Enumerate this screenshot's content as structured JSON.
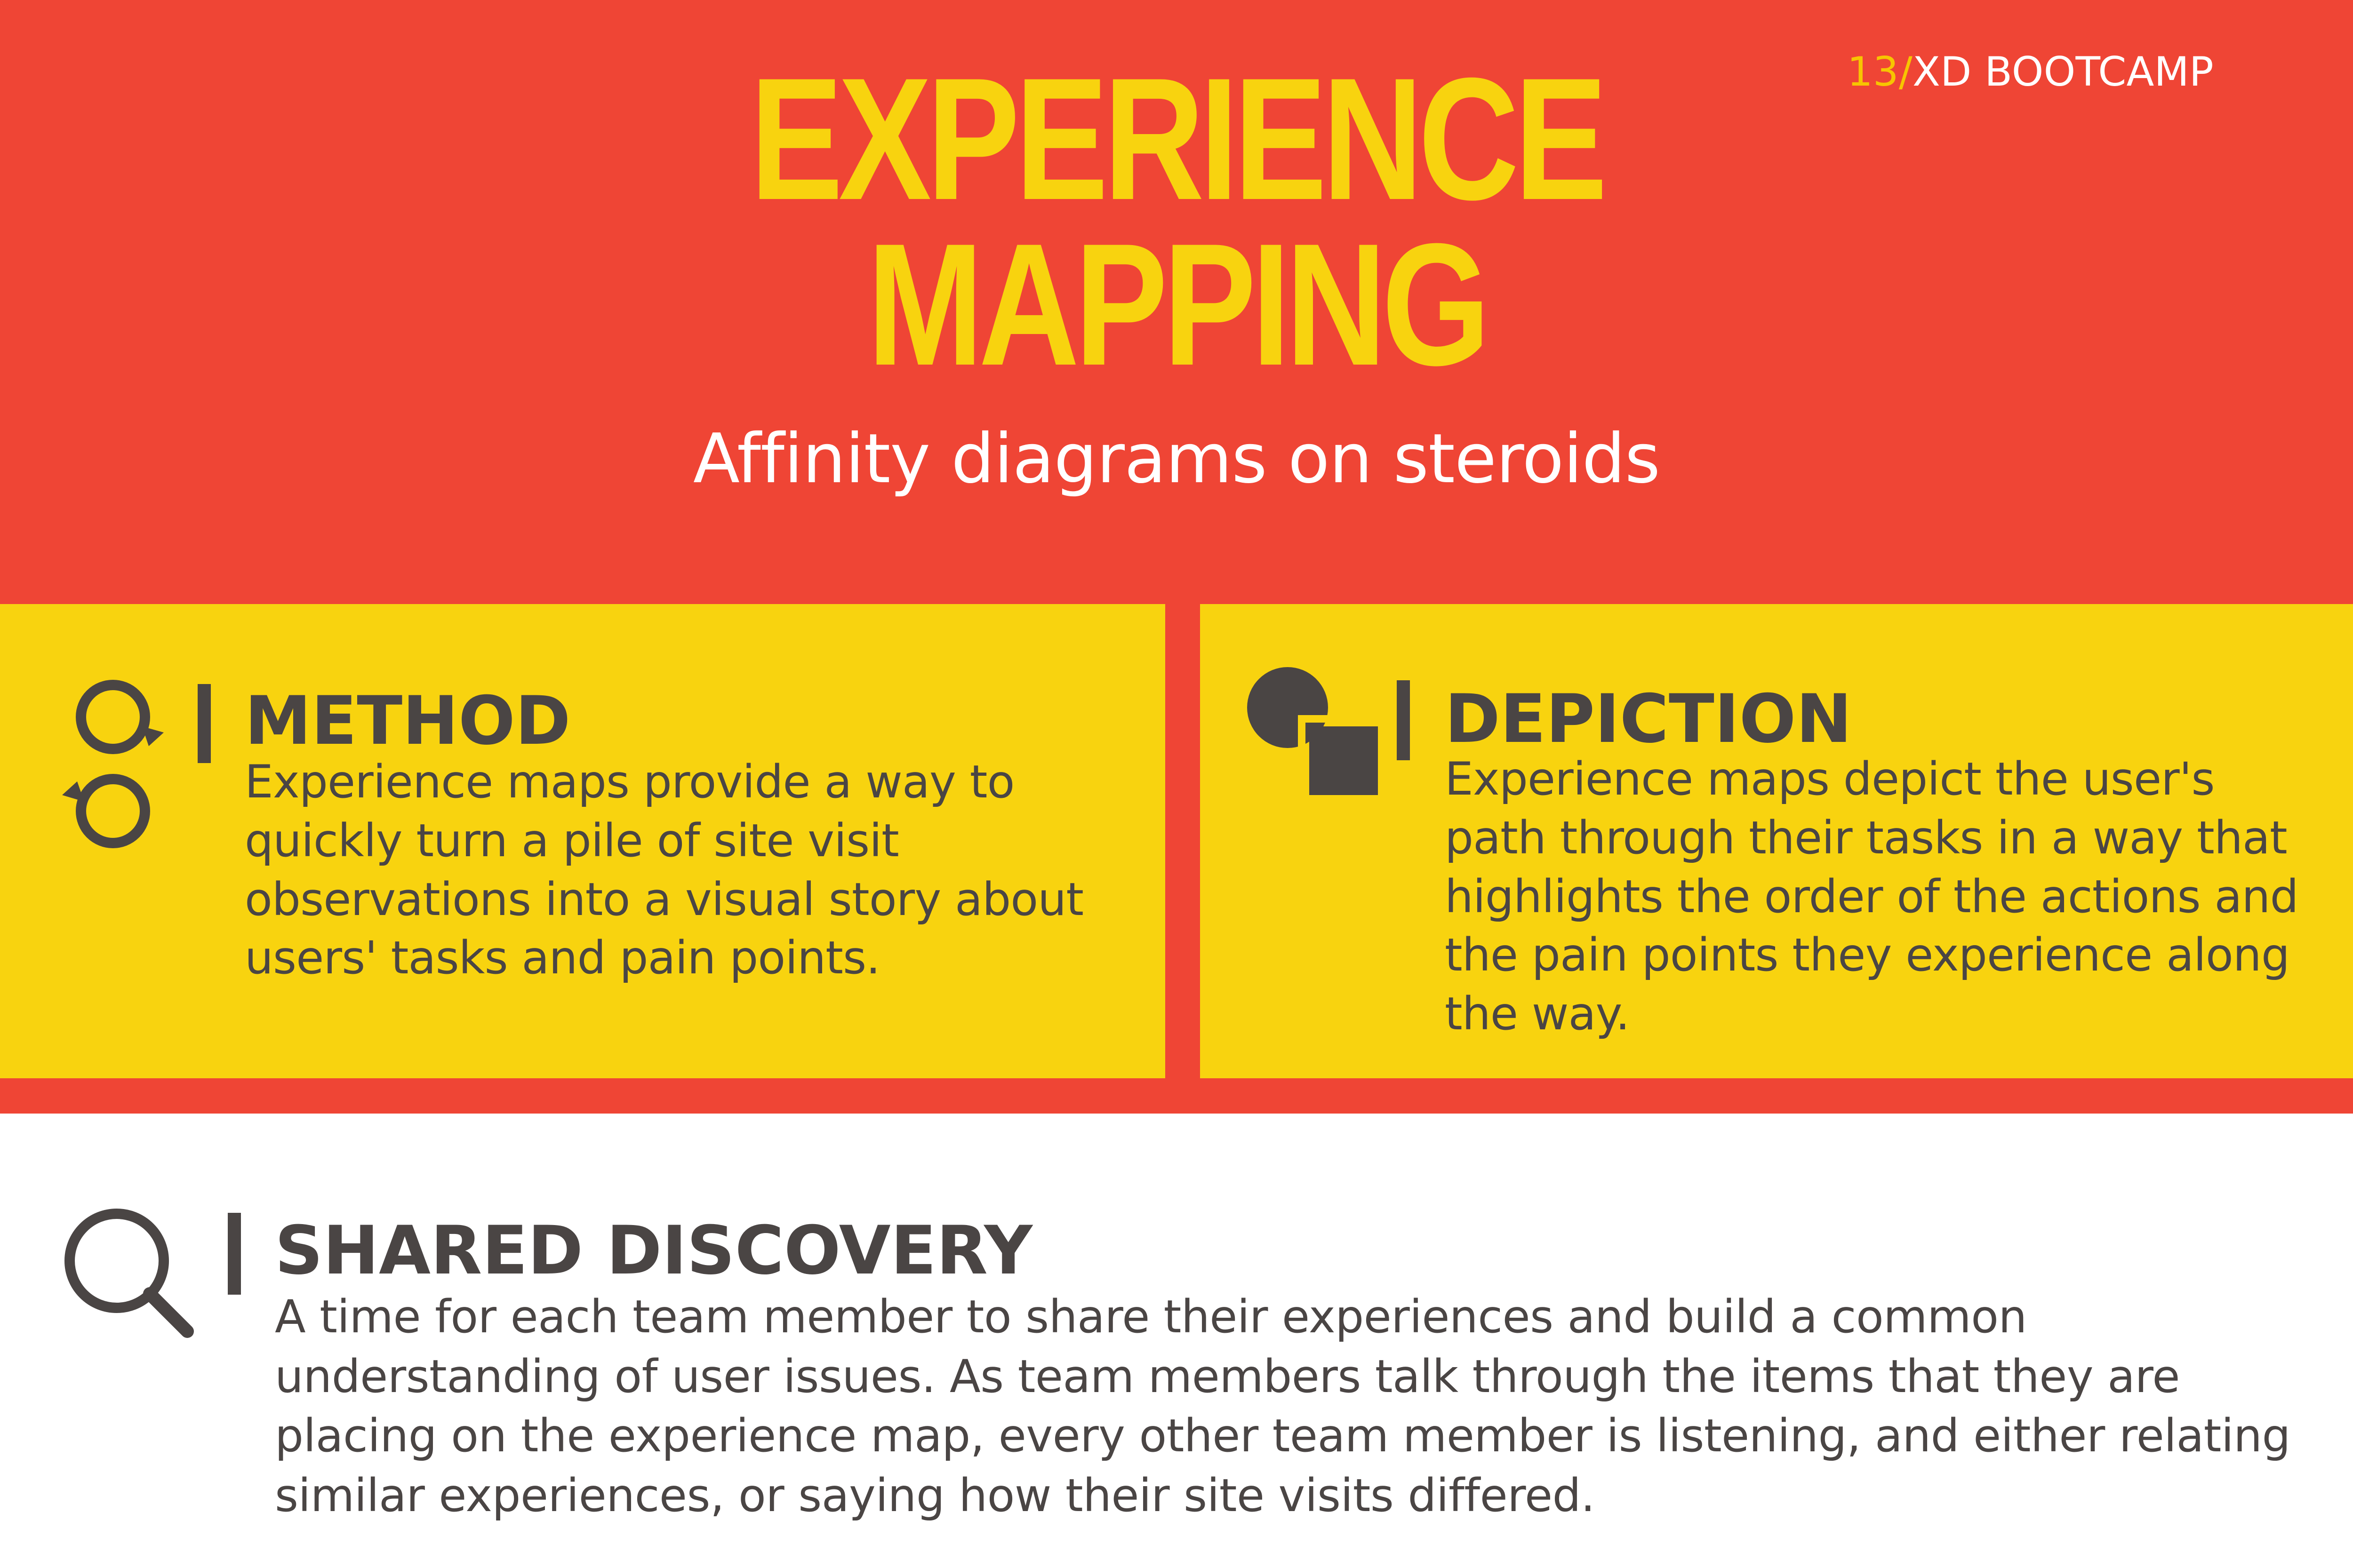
{
  "badge": {
    "number": "13/",
    "label": "XD BOOTCAMP"
  },
  "hero": {
    "title_line1": "EXPERIENCE",
    "title_line2": "MAPPING",
    "subtitle": "Affinity diagrams on steroids"
  },
  "sections": {
    "method": {
      "title": "METHOD",
      "body": "Experience maps provide a way to quickly turn a pile of site visit observations into a visual story about users' tasks and pain points."
    },
    "depiction": {
      "title": "DEPICTION",
      "body": "Experience maps depict the user's path through their tasks in a way that highlights the order of the actions and the pain points they experience along the way."
    },
    "shared_discovery": {
      "title": "SHARED DISCOVERY",
      "body": "A time for each team member to share their experiences and build a common understanding of user issues. As team members talk through the items that they are placing on the experience map, every other team member is listening, and either relating similar experiences, or saying how their site visits differed."
    }
  },
  "colors": {
    "red": "#ef4535",
    "yellow": "#f8d30f",
    "charcoal": "#4a4544",
    "white": "#ffffff"
  },
  "icons": {
    "method": "cycle-icon",
    "depiction": "shapes-icon",
    "shared_discovery": "search-icon"
  }
}
